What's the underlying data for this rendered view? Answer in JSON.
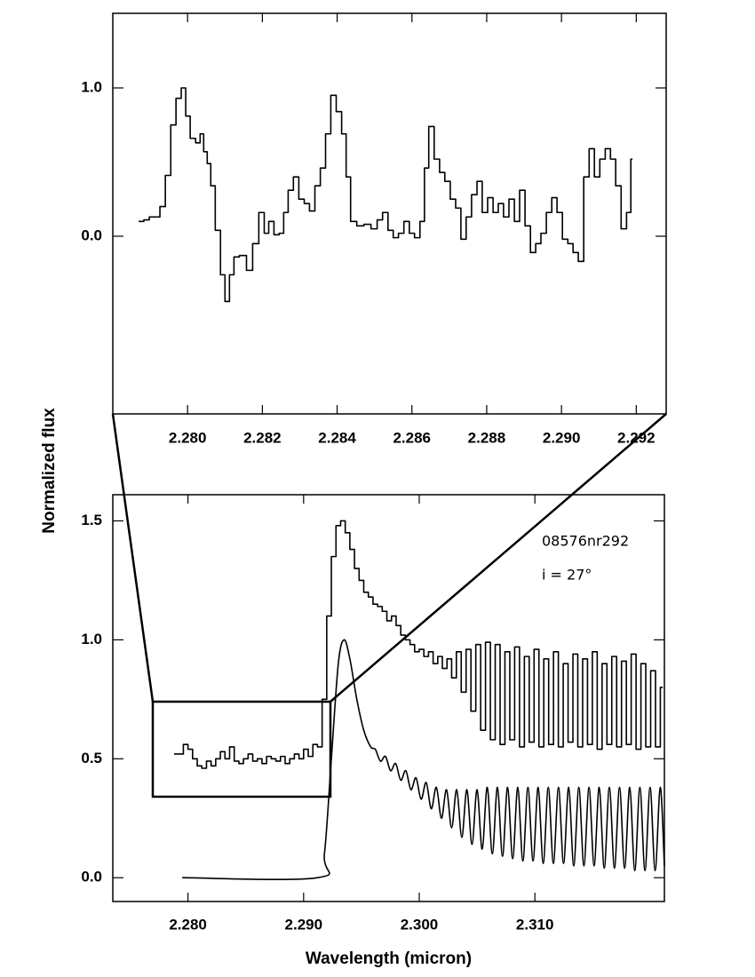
{
  "chart_data": [
    {
      "type": "line",
      "xlim": [
        2.278,
        2.2928
      ],
      "ylim": [
        -1.198,
        1.503
      ],
      "xticks": [
        {
          "value": 2.28,
          "label": "2.280"
        },
        2.282,
        2.284,
        2.286,
        2.288,
        {
          "value": 2.29,
          "label": "2.290"
        },
        2.292
      ],
      "yticks": [
        {
          "value": 0,
          "label": "0.0"
        },
        {
          "value": 1,
          "label": "1.0"
        }
      ],
      "series": [
        {
          "color": "#000",
          "step": true,
          "x": [
            2.27876,
            2.2789,
            2.27905,
            2.27919,
            2.27933,
            2.27948,
            2.27962,
            2.27976,
            2.2799,
            2.28,
            2.28014,
            2.28029,
            2.28038,
            2.28048,
            2.28057,
            2.28067,
            2.28081,
            2.28095,
            2.28105,
            2.28119,
            2.28129,
            2.28148,
            2.28167,
            2.28181,
            2.282,
            2.2821,
            2.28224,
            2.28238,
            2.28252,
            2.28262,
            2.28276,
            2.2829,
            2.28305,
            2.28319,
            2.28333,
            2.28348,
            2.28362,
            2.28376,
            2.2839,
            2.28405,
            2.28419,
            2.28429,
            2.28443,
            2.28462,
            2.28481,
            2.285,
            2.28514,
            2.28529,
            2.28543,
            2.28557,
            2.28571,
            2.28586,
            2.286,
            2.28614,
            2.28629,
            2.28638,
            2.28652,
            2.28667,
            2.28681,
            2.28695,
            2.2871,
            2.28724,
            2.28738,
            2.28752,
            2.28767,
            2.28781,
            2.28795,
            2.2881,
            2.28824,
            2.28838,
            2.28852,
            2.28867,
            2.28881,
            2.28895,
            2.2891,
            2.28924,
            2.28938,
            2.28952,
            2.28967,
            2.28981,
            2.28995,
            2.2901,
            2.29024,
            2.29038,
            2.29052,
            2.29067,
            2.29081,
            2.29095,
            2.2911,
            2.29124,
            2.29138,
            2.29152,
            2.29167,
            2.29181,
            2.2919
          ],
          "values": [
            0.1,
            0.11,
            0.13,
            0.13,
            0.2,
            0.41,
            0.75,
            0.93,
            1.0,
            0.81,
            0.66,
            0.63,
            0.69,
            0.57,
            0.49,
            0.34,
            0.04,
            -0.26,
            -0.44,
            -0.26,
            -0.14,
            -0.13,
            -0.23,
            -0.05,
            0.16,
            0.02,
            0.1,
            0.01,
            0.02,
            0.16,
            0.31,
            0.4,
            0.25,
            0.22,
            0.17,
            0.34,
            0.46,
            0.69,
            0.95,
            0.84,
            0.69,
            0.4,
            0.1,
            0.07,
            0.08,
            0.05,
            0.11,
            0.16,
            0.04,
            -0.01,
            0.02,
            0.1,
            0.02,
            -0.01,
            0.1,
            0.46,
            0.74,
            0.52,
            0.43,
            0.37,
            0.25,
            0.19,
            -0.02,
            0.13,
            0.28,
            0.37,
            0.16,
            0.26,
            0.16,
            0.22,
            0.13,
            0.25,
            0.1,
            0.31,
            0.07,
            -0.11,
            -0.05,
            0.02,
            0.16,
            0.26,
            0.16,
            -0.02,
            -0.05,
            -0.11,
            -0.17,
            0.4,
            0.59,
            0.4,
            0.52,
            0.59,
            0.52,
            0.34,
            0.05,
            0.16,
            0.52
          ]
        }
      ]
    },
    {
      "type": "line",
      "xlabel": "Wavelength (micron)",
      "ylabel": "Normalized flux",
      "xlim": [
        2.2735,
        2.3212
      ],
      "ylim": [
        -0.1,
        1.61
      ],
      "xticks": [
        {
          "value": 2.28,
          "label": "2.280"
        },
        {
          "value": 2.29,
          "label": "2.290"
        },
        {
          "value": 2.3,
          "label": "2.300"
        },
        {
          "value": 2.31,
          "label": "2.310"
        }
      ],
      "yticks": [
        {
          "value": 0,
          "label": "0.0"
        },
        0.5,
        {
          "value": 1,
          "label": "1.0"
        },
        1.5
      ],
      "annotations": [
        "08576nr292",
        "i = 27°"
      ],
      "series": [
        {
          "color": "#000",
          "step": true,
          "x": [
            2.279,
            2.2794,
            2.2798,
            2.2802,
            2.2806,
            2.281,
            2.2814,
            2.2818,
            2.2822,
            2.2826,
            2.283,
            2.2834,
            2.2838,
            2.2842,
            2.2846,
            2.285,
            2.2854,
            2.2858,
            2.2862,
            2.2866,
            2.287,
            2.2874,
            2.2878,
            2.2882,
            2.2886,
            2.289,
            2.2894,
            2.2898,
            2.2902,
            2.2906,
            2.291,
            2.2914,
            2.2918,
            2.2922,
            2.2926,
            2.293,
            2.2934,
            2.2938,
            2.2942,
            2.2946,
            2.295,
            2.2954,
            2.2958,
            2.2962,
            2.2966,
            2.297,
            2.2974,
            2.2978,
            2.2982,
            2.2986,
            2.299,
            2.2994,
            2.2998,
            2.3002,
            2.3006,
            2.301,
            2.3014,
            2.3018,
            2.3022,
            2.3026,
            2.303,
            2.30342,
            2.30384,
            2.30426,
            2.30468,
            2.3051,
            2.30552,
            2.30594,
            2.30636,
            2.30678,
            2.3072,
            2.30762,
            2.30804,
            2.30846,
            2.30888,
            2.3093,
            2.30972,
            2.31014,
            2.31056,
            2.31098,
            2.3114,
            2.31182,
            2.31224,
            2.31266,
            2.31308,
            2.3135,
            2.31392,
            2.31434,
            2.31476,
            2.31518,
            2.3156,
            2.31602,
            2.31644,
            2.31686,
            2.31728,
            2.3177,
            2.31812,
            2.31854,
            2.31896,
            2.31938,
            2.3198,
            2.32022,
            2.32064,
            2.32106
          ],
          "values": [
            0.52,
            0.52,
            0.56,
            0.54,
            0.5,
            0.47,
            0.46,
            0.49,
            0.47,
            0.5,
            0.53,
            0.5,
            0.55,
            0.49,
            0.48,
            0.5,
            0.52,
            0.49,
            0.5,
            0.48,
            0.51,
            0.5,
            0.49,
            0.51,
            0.48,
            0.5,
            0.52,
            0.5,
            0.54,
            0.51,
            0.56,
            0.55,
            0.75,
            1.1,
            1.35,
            1.48,
            1.5,
            1.45,
            1.38,
            1.3,
            1.25,
            1.2,
            1.18,
            1.15,
            1.14,
            1.12,
            1.08,
            1.1,
            1.06,
            1.02,
            1.0,
            0.98,
            0.95,
            0.96,
            0.93,
            0.95,
            0.9,
            0.93,
            0.88,
            0.92,
            0.84,
            0.95,
            0.78,
            0.96,
            0.7,
            0.98,
            0.62,
            0.99,
            0.58,
            0.98,
            0.56,
            0.95,
            0.58,
            0.97,
            0.55,
            0.93,
            0.57,
            0.96,
            0.55,
            0.92,
            0.56,
            0.95,
            0.55,
            0.9,
            0.57,
            0.94,
            0.55,
            0.92,
            0.56,
            0.95,
            0.54,
            0.9,
            0.56,
            0.93,
            0.55,
            0.91,
            0.56,
            0.94,
            0.54,
            0.9,
            0.55,
            0.87,
            0.55,
            0.8
          ]
        },
        {
          "color": "#000",
          "step": false,
          "x": [
            2.2795,
            2.2912,
            2.2918,
            2.2924,
            2.293,
            2.2935,
            2.294,
            2.2946,
            2.2952,
            2.2958,
            2.2962,
            2.29664,
            2.29708,
            2.29752,
            2.29796,
            2.2984,
            2.29884,
            2.29928,
            2.29972,
            2.30016,
            2.3006,
            2.30104,
            2.30148,
            2.30192,
            2.30236,
            2.3028,
            2.30324,
            2.30368,
            2.30412,
            2.30456,
            2.305,
            2.30544,
            2.30588,
            2.30632,
            2.30676,
            2.3072,
            2.30764,
            2.30808,
            2.30852,
            2.30896,
            2.3094,
            2.30984,
            2.31028,
            2.31072,
            2.31116,
            2.3116,
            2.31204,
            2.31248,
            2.31292,
            2.31336,
            2.3138,
            2.31424,
            2.31468,
            2.31512,
            2.31556,
            2.316,
            2.31644,
            2.31688,
            2.31732,
            2.31776,
            2.3182,
            2.31864,
            2.31908,
            2.31952,
            2.31996,
            2.3204,
            2.32084,
            2.3212
          ],
          "values": [
            0,
            0,
            0.1,
            0.5,
            0.9,
            1.0,
            0.92,
            0.75,
            0.62,
            0.55,
            0.54,
            0.49,
            0.51,
            0.45,
            0.48,
            0.41,
            0.45,
            0.37,
            0.42,
            0.33,
            0.4,
            0.29,
            0.38,
            0.25,
            0.37,
            0.21,
            0.37,
            0.17,
            0.37,
            0.14,
            0.37,
            0.12,
            0.38,
            0.1,
            0.38,
            0.09,
            0.38,
            0.08,
            0.38,
            0.07,
            0.38,
            0.07,
            0.38,
            0.06,
            0.38,
            0.06,
            0.38,
            0.06,
            0.38,
            0.05,
            0.38,
            0.05,
            0.38,
            0.05,
            0.38,
            0.04,
            0.38,
            0.04,
            0.38,
            0.04,
            0.38,
            0.03,
            0.38,
            0.03,
            0.38,
            0.03,
            0.38,
            0.05
          ]
        }
      ]
    }
  ]
}
